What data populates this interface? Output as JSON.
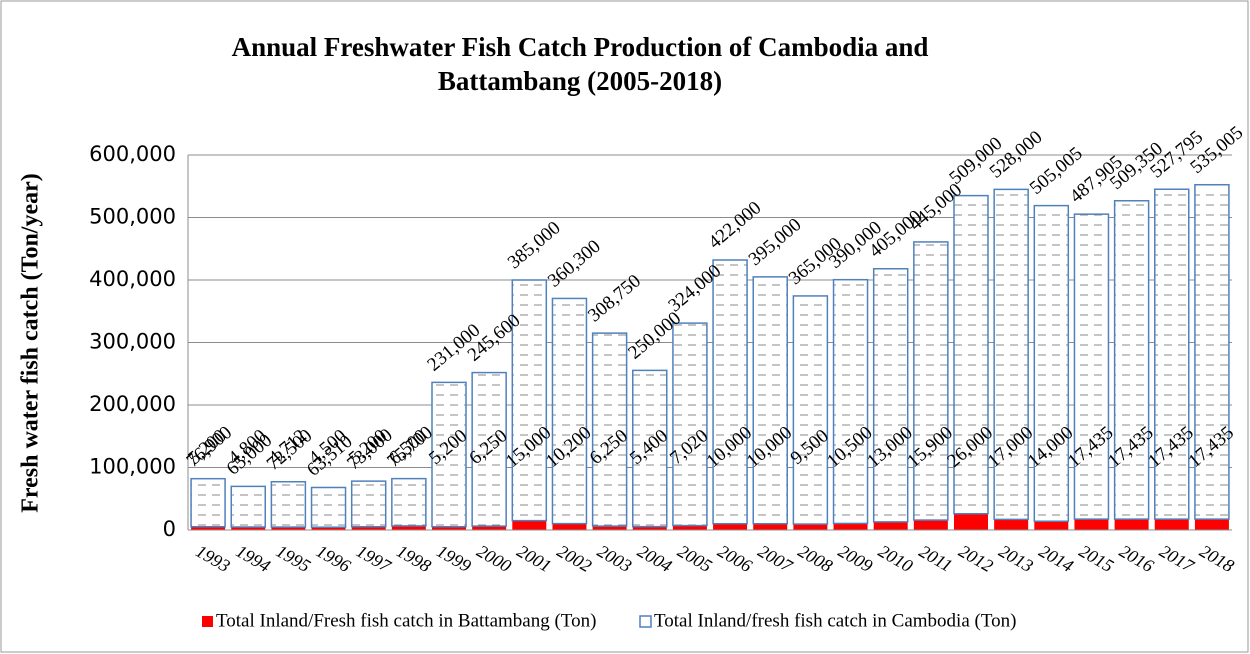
{
  "chart_data": {
    "type": "bar",
    "stacked": true,
    "title": "Annual Freshwater Fish Catch Production of Cambodia and Battambang (2005-2018)",
    "ylabel": "Fresh water fish catch (Ton/year)",
    "categories": [
      "1993",
      "1994",
      "1995",
      "1996",
      "1997",
      "1998",
      "1999",
      "2000",
      "2001",
      "2002",
      "2003",
      "2004",
      "2005",
      "2006",
      "2007",
      "2008",
      "2009",
      "2010",
      "2011",
      "2012",
      "2013",
      "2014",
      "2015",
      "2016",
      "2017",
      "2018"
    ],
    "series": [
      {
        "name": "Total Inland/Fresh fish catch in Battambang (Ton)",
        "color": "#ff0000",
        "values": [
          5200,
          4800,
          4712,
          4500,
          5200,
          6500,
          5200,
          6250,
          15000,
          10200,
          6250,
          5400,
          7020,
          10000,
          10000,
          9500,
          10500,
          13000,
          15900,
          26000,
          17000,
          14000,
          17435,
          17435,
          17435,
          17435
        ],
        "value_labels": [
          "5,200",
          "4,800",
          "4,712",
          "4,500",
          "5,200",
          "6,500",
          "5,200",
          "6,250",
          "15,000",
          "10,200",
          "6,250",
          "5,400",
          "7,020",
          "10,000",
          "10,000",
          "9,500",
          "10,500",
          "13,000",
          "15,900",
          "26,000",
          "17,000",
          "14,000",
          "17,435",
          "17,435",
          "17,435",
          "17,435"
        ]
      },
      {
        "name": "Total Inland/fresh fish catch in Cambodia (Ton)",
        "color": "#4f81bd",
        "values": [
          76900,
          65000,
          72500,
          63510,
          73000,
          75700,
          231000,
          245600,
          385000,
          360300,
          308750,
          250000,
          324000,
          422000,
          395000,
          365000,
          390000,
          405000,
          445000,
          509000,
          528000,
          505005,
          487905,
          509350,
          527795,
          535005
        ],
        "value_labels": [
          "76,900",
          "65,000",
          "72,500",
          "63,510",
          "73,000",
          "75,700",
          "231,000",
          "245,600",
          "385,000",
          "360,300",
          "308,750",
          "250,000",
          "324,000",
          "422,000",
          "395,000",
          "365,000",
          "390,000",
          "405,000",
          "445,000",
          "509,000",
          "528,000",
          "505,005",
          "487,905",
          "509,350",
          "527,795",
          "535,005"
        ]
      }
    ],
    "ylim": [
      0,
      600000
    ],
    "yticks": [
      0,
      {
        "value": 100000,
        "label": "100,000"
      },
      {
        "value": 200000,
        "label": "200,000"
      },
      {
        "value": 300000,
        "label": "300,000"
      },
      {
        "value": 400000,
        "label": "400,000"
      },
      {
        "value": 500000,
        "label": "500,000"
      },
      {
        "value": 600000,
        "label": "600,000"
      }
    ],
    "grid": true,
    "legend": "bottom"
  }
}
